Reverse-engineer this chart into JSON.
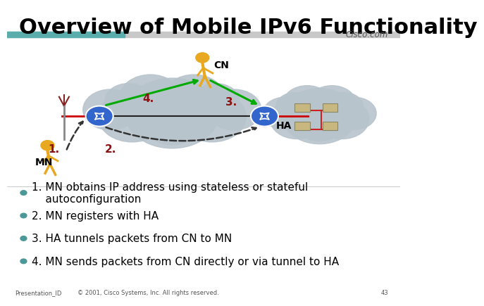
{
  "title": "Overview of Mobile IPv6 Functionality",
  "title_fontsize": 22,
  "title_fontweight": "bold",
  "title_color": "#000000",
  "bg_color": "#ffffff",
  "cisco_text": "Cisco.com",
  "footer_text": "Presentation_ID",
  "footer_copyright": "© 2001, Cisco Systems, Inc. All rights reserved.",
  "footer_page": "43",
  "bullet_items": [
    "1. MN obtains IP address using stateless or stateful\n    autoconfiguration",
    "2. MN registers with HA",
    "3. HA tunnels packets from CN to MN",
    "4. MN sends packets from CN directly or via tunnel to HA"
  ],
  "bullet_fontsize": 11,
  "green_arrow_color": "#00aa00",
  "dashed_arrow_color": "#333333",
  "router_color": "#3366cc",
  "bullet_color": "#4a9898"
}
